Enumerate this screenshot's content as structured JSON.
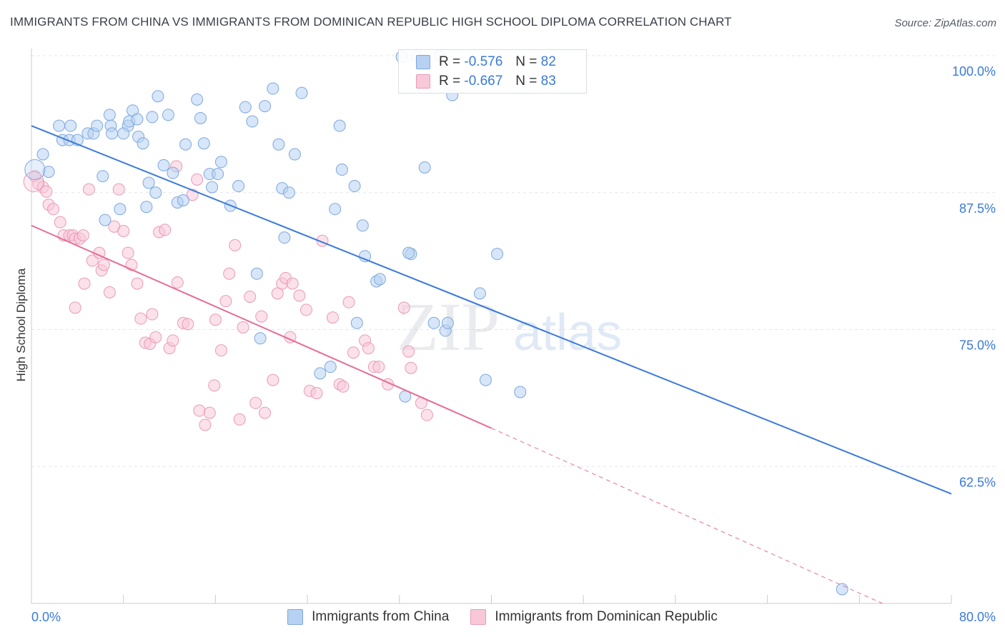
{
  "title": "IMMIGRANTS FROM CHINA VS IMMIGRANTS FROM DOMINICAN REPUBLIC HIGH SCHOOL DIPLOMA CORRELATION CHART",
  "source": "Source: ZipAtlas.com",
  "watermark": {
    "zip": "ZIP",
    "atlas": "atlas"
  },
  "legend": {
    "r_label": "R =",
    "n_label": "N =",
    "rows": [
      {
        "r": "-0.576",
        "n": "82"
      },
      {
        "r": "-0.667",
        "n": "83"
      }
    ]
  },
  "colors": {
    "blue_fill": "#b7d1f2",
    "blue_stroke": "#7ea8de",
    "blue_line": "#3a7ad9",
    "pink_fill": "#f8c8d8",
    "pink_stroke": "#ea9ab6",
    "pink_line": "#e66c97",
    "tick_label": "#3a7ad9"
  },
  "chart_data": {
    "type": "scatter",
    "title": "IMMIGRANTS FROM CHINA VS IMMIGRANTS FROM DOMINICAN REPUBLIC HIGH SCHOOL DIPLOMA CORRELATION CHART",
    "ylabel": "High School Diploma",
    "xlabel": "",
    "xlim": [
      0,
      80
    ],
    "ylim": [
      50,
      100
    ],
    "x_tick_labels": [
      "0.0%",
      "80.0%"
    ],
    "y_ticks": [
      62.5,
      75.0,
      87.5,
      100.0
    ],
    "y_tick_labels": [
      "62.5%",
      "75.0%",
      "87.5%",
      "100.0%"
    ],
    "grid": true,
    "legend_position": "top-center",
    "series": [
      {
        "name": "Immigrants from China",
        "color": "#7ea8de",
        "trend": {
          "x": [
            0,
            80
          ],
          "y": [
            93.6,
            60.0
          ]
        },
        "points": [
          [
            1,
            91.0
          ],
          [
            1.5,
            89.4
          ],
          [
            2.7,
            92.3
          ],
          [
            3.3,
            92.3
          ],
          [
            2.4,
            93.6
          ],
          [
            3.4,
            93.6
          ],
          [
            4.0,
            92.3
          ],
          [
            4.9,
            92.9
          ],
          [
            5.4,
            92.9
          ],
          [
            5.7,
            93.6
          ],
          [
            6.2,
            89.0
          ],
          [
            6.4,
            85.0
          ],
          [
            6.8,
            94.6
          ],
          [
            6.9,
            93.6
          ],
          [
            7.0,
            92.9
          ],
          [
            7.7,
            86.0
          ],
          [
            8.4,
            93.6
          ],
          [
            8.0,
            92.9
          ],
          [
            8.5,
            94.0
          ],
          [
            8.8,
            95.0
          ],
          [
            9.2,
            94.2
          ],
          [
            9.3,
            92.6
          ],
          [
            9.7,
            92.0
          ],
          [
            10.0,
            86.2
          ],
          [
            10.2,
            88.4
          ],
          [
            10.5,
            94.4
          ],
          [
            10.8,
            87.5
          ],
          [
            11.0,
            96.3
          ],
          [
            11.5,
            90.0
          ],
          [
            11.9,
            94.6
          ],
          [
            12.3,
            89.3
          ],
          [
            12.7,
            86.6
          ],
          [
            13.2,
            86.8
          ],
          [
            13.4,
            91.9
          ],
          [
            14.4,
            96.0
          ],
          [
            14.7,
            94.3
          ],
          [
            15.0,
            92.0
          ],
          [
            15.5,
            89.2
          ],
          [
            15.7,
            88.0
          ],
          [
            16.2,
            89.2
          ],
          [
            16.5,
            90.3
          ],
          [
            17.3,
            86.3
          ],
          [
            18.0,
            88.1
          ],
          [
            18.6,
            95.3
          ],
          [
            19.2,
            94.0
          ],
          [
            19.6,
            80.1
          ],
          [
            19.9,
            74.2
          ],
          [
            20.3,
            95.4
          ],
          [
            21.0,
            97.0
          ],
          [
            21.5,
            91.9
          ],
          [
            21.8,
            87.9
          ],
          [
            22.0,
            83.4
          ],
          [
            22.4,
            87.5
          ],
          [
            22.9,
            91.0
          ],
          [
            23.5,
            96.6
          ],
          [
            25.1,
            71.0
          ],
          [
            26.0,
            71.6
          ],
          [
            26.4,
            86.0
          ],
          [
            26.8,
            93.6
          ],
          [
            27.0,
            89.6
          ],
          [
            28.1,
            88.1
          ],
          [
            28.3,
            75.6
          ],
          [
            28.8,
            84.5
          ],
          [
            29.0,
            81.7
          ],
          [
            30.0,
            79.4
          ],
          [
            30.3,
            79.6
          ],
          [
            32.2,
            99.9
          ],
          [
            32.5,
            68.9
          ],
          [
            33.0,
            81.9
          ],
          [
            33.5,
            99.9
          ],
          [
            34.2,
            89.8
          ],
          [
            35.0,
            75.6
          ],
          [
            36.0,
            74.9
          ],
          [
            36.6,
            96.4
          ],
          [
            36.2,
            75.6
          ],
          [
            39.0,
            78.3
          ],
          [
            39.5,
            70.4
          ],
          [
            42.5,
            69.3
          ],
          [
            32.8,
            82.0
          ],
          [
            35.5,
            100.0
          ],
          [
            40.5,
            81.9
          ],
          [
            70.5,
            51.3
          ]
        ]
      },
      {
        "name": "Immigrants from Dominican Republic",
        "color": "#ea9ab6",
        "trend": {
          "x": [
            0,
            40
          ],
          "y": [
            84.5,
            66.0
          ]
        },
        "trend_dashed": {
          "x": [
            40,
            74
          ],
          "y": [
            66.0,
            50.0
          ]
        },
        "points": [
          [
            0.3,
            89.0
          ],
          [
            0.6,
            88.3
          ],
          [
            1.0,
            88.0
          ],
          [
            1.3,
            87.6
          ],
          [
            1.5,
            86.4
          ],
          [
            1.9,
            86.0
          ],
          [
            2.5,
            84.8
          ],
          [
            2.8,
            83.6
          ],
          [
            3.3,
            83.6
          ],
          [
            3.6,
            83.6
          ],
          [
            3.8,
            83.3
          ],
          [
            4.2,
            83.3
          ],
          [
            4.5,
            83.6
          ],
          [
            5.0,
            87.8
          ],
          [
            5.3,
            81.3
          ],
          [
            5.9,
            82.0
          ],
          [
            6.1,
            80.4
          ],
          [
            6.3,
            80.9
          ],
          [
            6.8,
            78.4
          ],
          [
            7.2,
            84.4
          ],
          [
            7.6,
            87.8
          ],
          [
            8.0,
            84.0
          ],
          [
            8.4,
            82.0
          ],
          [
            8.7,
            80.9
          ],
          [
            9.2,
            79.2
          ],
          [
            9.5,
            76.0
          ],
          [
            9.9,
            73.8
          ],
          [
            10.3,
            73.7
          ],
          [
            10.5,
            76.4
          ],
          [
            11.1,
            83.9
          ],
          [
            11.6,
            84.1
          ],
          [
            12.0,
            73.3
          ],
          [
            12.3,
            74.0
          ],
          [
            12.7,
            79.3
          ],
          [
            13.2,
            75.6
          ],
          [
            13.6,
            75.5
          ],
          [
            14.0,
            87.3
          ],
          [
            14.4,
            88.7
          ],
          [
            14.6,
            67.6
          ],
          [
            15.1,
            66.3
          ],
          [
            15.5,
            67.4
          ],
          [
            15.9,
            69.9
          ],
          [
            16.0,
            75.9
          ],
          [
            16.5,
            73.1
          ],
          [
            16.9,
            77.6
          ],
          [
            17.2,
            80.1
          ],
          [
            17.7,
            82.7
          ],
          [
            18.1,
            66.8
          ],
          [
            18.4,
            75.2
          ],
          [
            19.0,
            78.0
          ],
          [
            19.5,
            68.3
          ],
          [
            20.0,
            76.2
          ],
          [
            20.3,
            67.4
          ],
          [
            21.0,
            70.4
          ],
          [
            21.4,
            78.3
          ],
          [
            21.8,
            79.2
          ],
          [
            22.1,
            79.7
          ],
          [
            22.5,
            74.3
          ],
          [
            22.7,
            79.2
          ],
          [
            23.3,
            78.1
          ],
          [
            23.9,
            76.8
          ],
          [
            24.2,
            69.4
          ],
          [
            24.8,
            69.2
          ],
          [
            25.3,
            83.1
          ],
          [
            26.2,
            76.1
          ],
          [
            26.8,
            70.0
          ],
          [
            27.1,
            69.8
          ],
          [
            27.6,
            77.5
          ],
          [
            28.0,
            72.9
          ],
          [
            29.0,
            74.0
          ],
          [
            29.3,
            73.3
          ],
          [
            29.8,
            71.6
          ],
          [
            30.2,
            71.6
          ],
          [
            31.0,
            70.0
          ],
          [
            32.4,
            77.0
          ],
          [
            32.8,
            73.0
          ],
          [
            33.0,
            71.5
          ],
          [
            33.9,
            68.3
          ],
          [
            34.4,
            67.2
          ],
          [
            3.8,
            77.0
          ],
          [
            4.6,
            79.2
          ],
          [
            10.8,
            74.3
          ],
          [
            12.6,
            89.9
          ]
        ]
      }
    ]
  }
}
